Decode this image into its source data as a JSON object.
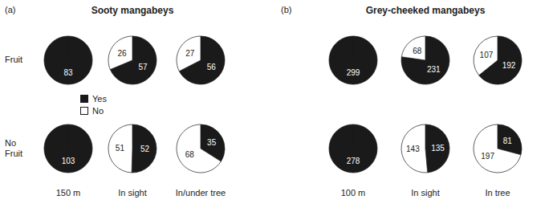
{
  "chart_data": [
    {
      "type": "pie",
      "title": "Sooty mangabeys",
      "annotations": [
        "(a)"
      ],
      "categories": [
        "Yes",
        "No"
      ],
      "colors": [
        "#1a1a1a",
        "#ffffff"
      ],
      "rows": [
        "Fruit",
        "No\nFruit"
      ],
      "columns": [
        "150 m",
        "In sight",
        "In/under tree"
      ],
      "values": [
        [
          [
            83,
            0
          ],
          [
            57,
            26
          ],
          [
            56,
            27
          ]
        ],
        [
          [
            103,
            0
          ],
          [
            52,
            51
          ],
          [
            35,
            68
          ]
        ]
      ],
      "data_labels": true,
      "legend": "center"
    },
    {
      "type": "pie",
      "title": "Grey-cheeked mangabeys",
      "annotations": [
        "(b)"
      ],
      "categories": [
        "Yes",
        "No"
      ],
      "colors": [
        "#1a1a1a",
        "#ffffff"
      ],
      "columns": [
        "100 m",
        "In sight",
        "In tree"
      ],
      "values": [
        [
          [
            299,
            0
          ],
          [
            231,
            68
          ],
          [
            192,
            107
          ]
        ],
        [
          [
            278,
            0
          ],
          [
            135,
            143
          ],
          [
            81,
            197
          ]
        ]
      ],
      "data_labels": true
    }
  ]
}
